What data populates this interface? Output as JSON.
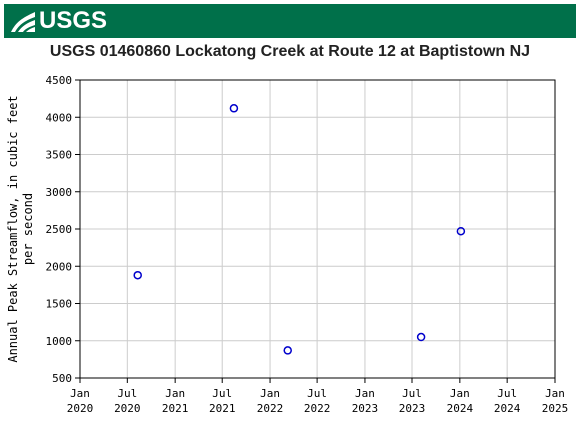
{
  "header": {
    "logo_text": "USGS"
  },
  "chart_data": {
    "type": "scatter",
    "title": "USGS 01460860 Lockatong Creek at Route 12 at Baptistown NJ",
    "ylabel_lines": [
      "Annual Peak Streamflow, in cubic feet",
      "per second"
    ],
    "xlabel": "",
    "ylim": [
      500,
      4500
    ],
    "yticks": [
      500,
      1000,
      1500,
      2000,
      2500,
      3000,
      3500,
      4000,
      4500
    ],
    "xlim": [
      "2020-01-01",
      "2025-01-01"
    ],
    "xticks": [
      {
        "date": "2020-01-01",
        "line1": "Jan",
        "line2": "2020"
      },
      {
        "date": "2020-07-01",
        "line1": "Jul",
        "line2": "2020"
      },
      {
        "date": "2021-01-01",
        "line1": "Jan",
        "line2": "2021"
      },
      {
        "date": "2021-07-01",
        "line1": "Jul",
        "line2": "2021"
      },
      {
        "date": "2022-01-01",
        "line1": "Jan",
        "line2": "2022"
      },
      {
        "date": "2022-07-01",
        "line1": "Jul",
        "line2": "2022"
      },
      {
        "date": "2023-01-01",
        "line1": "Jan",
        "line2": "2023"
      },
      {
        "date": "2023-07-01",
        "line1": "Jul",
        "line2": "2023"
      },
      {
        "date": "2024-01-01",
        "line1": "Jan",
        "line2": "2024"
      },
      {
        "date": "2024-07-01",
        "line1": "Jul",
        "line2": "2024"
      },
      {
        "date": "2025-01-01",
        "line1": "Jan",
        "line2": "2025"
      }
    ],
    "grid": true,
    "marker_color": "#0000cc",
    "grid_color": "#cccccc",
    "points": [
      {
        "x": "2020-08-10",
        "y": 1880
      },
      {
        "x": "2021-08-15",
        "y": 4120
      },
      {
        "x": "2022-03-10",
        "y": 870
      },
      {
        "x": "2023-08-05",
        "y": 1050
      },
      {
        "x": "2024-01-05",
        "y": 2470
      }
    ]
  }
}
